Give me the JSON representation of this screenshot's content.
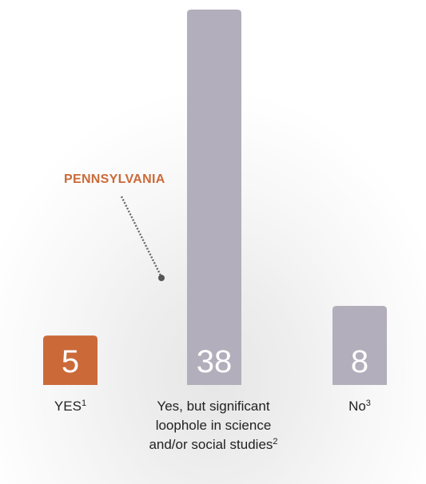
{
  "chart_data": {
    "type": "bar",
    "categories": [
      {
        "label": "YES",
        "note": "1"
      },
      {
        "label": "Yes, but significant loophole in science and/or social studies",
        "note": "2"
      },
      {
        "label": "No",
        "note": "3"
      }
    ],
    "values": [
      5,
      38,
      8
    ],
    "value_labels": [
      "5",
      "38",
      "8"
    ],
    "colors": [
      "#cb6a38",
      "#b3aebb",
      "#b3aebb"
    ],
    "annotation": {
      "text": "PENNSYLVANIA",
      "color": "#cb6a38",
      "target_category_index": 0
    },
    "value_label_colors": {
      "outside": "#cb6a38",
      "inside": "#ffffff"
    },
    "ylim": [
      0,
      38
    ],
    "grid": false,
    "legend": "none"
  }
}
